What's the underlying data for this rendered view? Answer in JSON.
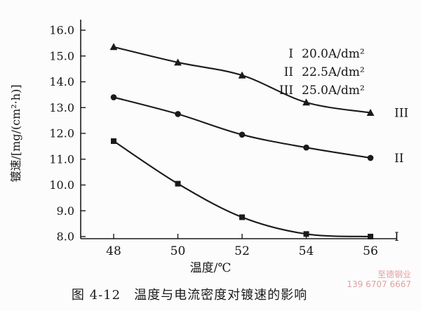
{
  "chart_data": {
    "type": "line",
    "title": "",
    "xlabel": "温度/℃",
    "ylabel": "镀速/[mg/(cm²·h)]",
    "xlim": [
      48,
      56
    ],
    "ylim": [
      8.0,
      16.0
    ],
    "xticks": [
      "48",
      "50",
      "52",
      "54",
      "56"
    ],
    "yticks": [
      "16.0",
      "15.0",
      "14.0",
      "13.0",
      "12.0",
      "11.0",
      "10.0",
      "9.0",
      "8.0"
    ],
    "grid": false,
    "legend_position": "top-right",
    "line_color": "#1a1a1a",
    "x": [
      48,
      50,
      52,
      54,
      56
    ],
    "series": [
      {
        "name": "I",
        "legend": "20.0A/dm²",
        "marker": "square",
        "values": [
          11.7,
          10.05,
          8.75,
          8.1,
          8.0
        ]
      },
      {
        "name": "II",
        "legend": "22.5A/dm²",
        "marker": "circle",
        "values": [
          13.4,
          12.75,
          11.95,
          11.45,
          11.05
        ]
      },
      {
        "name": "III",
        "legend": "25.0A/dm²",
        "marker": "triangle",
        "values": [
          15.35,
          14.75,
          14.25,
          13.2,
          12.8
        ]
      }
    ]
  },
  "caption": "图 4-12　温度与电流密度对镀速的影响",
  "watermark": {
    "line1": "至德钢业",
    "line2": "139 6707 6667",
    "color": "#e2a1a1"
  }
}
